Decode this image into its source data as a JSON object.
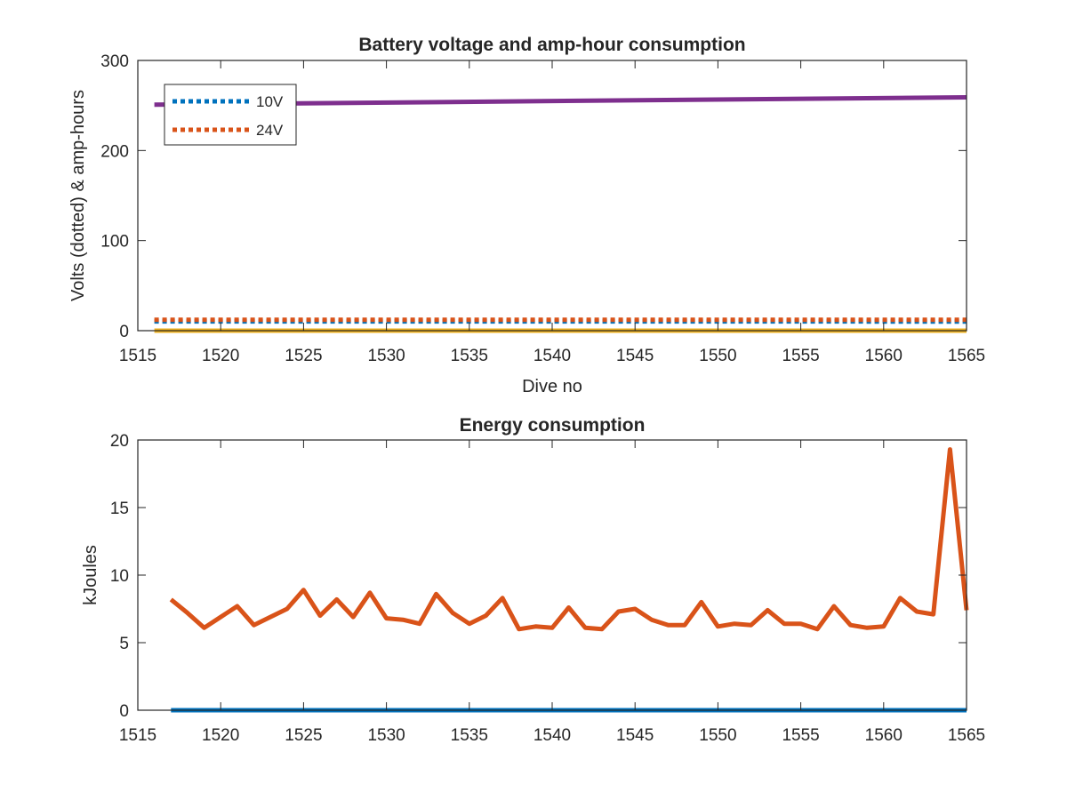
{
  "chart_data": [
    {
      "type": "line",
      "title": "Battery voltage and amp-hour consumption",
      "xlabel": "Dive no",
      "ylabel": "Volts (dotted) & amp-hours",
      "xlim": [
        1515,
        1565
      ],
      "ylim": [
        0,
        300
      ],
      "xticks": [
        "1515",
        "1520",
        "1525",
        "1530",
        "1535",
        "1540",
        "1545",
        "1550",
        "1555",
        "1560",
        "1565"
      ],
      "yticks": [
        "0",
        "100",
        "200",
        "300"
      ],
      "grid": false,
      "legend_position": "top-left",
      "series": [
        {
          "name": "10V",
          "style": "dotted",
          "color": "#0072BD",
          "x": [
            1516,
            1565
          ],
          "y": [
            10.3,
            10.2
          ]
        },
        {
          "name": "24V",
          "style": "dotted",
          "color": "#D95319",
          "x": [
            1516,
            1565
          ],
          "y": [
            12,
            12
          ]
        },
        {
          "style": "solid",
          "color": "#7E2F8E",
          "x": [
            1516,
            1565
          ],
          "y": [
            251,
            259
          ]
        },
        {
          "style": "solid",
          "color": "#EDB120",
          "x": [
            1516,
            1565
          ],
          "y": [
            0,
            0
          ]
        }
      ]
    },
    {
      "type": "line",
      "title": "Energy consumption",
      "xlabel": "",
      "ylabel": "kJoules",
      "xlim": [
        1515,
        1565
      ],
      "ylim": [
        0,
        20
      ],
      "xticks": [
        "1515",
        "1520",
        "1525",
        "1530",
        "1535",
        "1540",
        "1545",
        "1550",
        "1555",
        "1560",
        "1565"
      ],
      "yticks": [
        "0",
        "5",
        "10",
        "15",
        "20"
      ],
      "grid": false,
      "series": [
        {
          "style": "solid",
          "color": "#D95319",
          "x": [
            1517,
            1518,
            1519,
            1520,
            1521,
            1522,
            1523,
            1524,
            1525,
            1526,
            1527,
            1528,
            1529,
            1530,
            1531,
            1532,
            1533,
            1534,
            1535,
            1536,
            1537,
            1538,
            1539,
            1540,
            1541,
            1542,
            1543,
            1544,
            1545,
            1546,
            1547,
            1548,
            1549,
            1550,
            1551,
            1552,
            1553,
            1554,
            1555,
            1556,
            1557,
            1558,
            1559,
            1560,
            1561,
            1562,
            1563,
            1564,
            1565
          ],
          "y": [
            8.2,
            7.2,
            6.1,
            6.9,
            7.7,
            6.3,
            6.9,
            7.5,
            8.9,
            7.0,
            8.2,
            6.9,
            8.7,
            6.8,
            6.7,
            6.4,
            8.6,
            7.2,
            6.4,
            7.0,
            8.3,
            6.0,
            6.2,
            6.1,
            7.6,
            6.1,
            6.0,
            7.3,
            7.5,
            6.7,
            6.3,
            6.3,
            8.0,
            6.2,
            6.4,
            6.3,
            7.4,
            6.4,
            6.4,
            6.0,
            7.7,
            6.3,
            6.1,
            6.2,
            8.3,
            7.3,
            7.1,
            19.3,
            7.4
          ]
        },
        {
          "style": "solid",
          "color": "#0072BD",
          "x": [
            1517,
            1565
          ],
          "y": [
            0,
            0
          ]
        }
      ]
    }
  ]
}
